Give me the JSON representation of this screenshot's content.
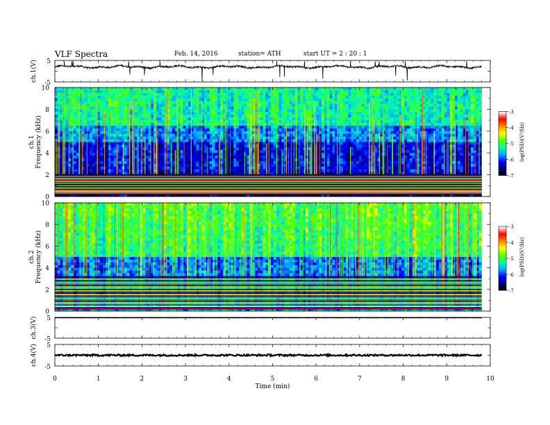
{
  "header": {
    "title": "VLF  Spectra",
    "date": "Feb. 14, 2016",
    "station": "station= ATH",
    "start_ut": "start  UT  =   2  : 20 : 1"
  },
  "chart_data": [
    {
      "id": "ch1_waveform",
      "type": "line",
      "ylabel": "ch.1(V)",
      "ylim": [
        -5,
        5
      ],
      "yticks": [
        "5",
        "-5"
      ],
      "xlim": [
        0,
        10
      ],
      "baseline": 2.0,
      "note_values": "noisy waveform around ~2 V with sparse spikes toward +/-5 V"
    },
    {
      "id": "ch1_spectrogram",
      "type": "heatmap",
      "ylabel": "ch.1\nFrequency  (kHz)",
      "ylabel_lines": [
        "ch.1",
        "Frequency  (kHz)"
      ],
      "ylim": [
        0,
        10
      ],
      "yticks": [
        "0",
        "2",
        "4",
        "6",
        "8",
        "10"
      ],
      "xlim": [
        0,
        9.8
      ],
      "colorbar": {
        "label": "log(PSD)(V²/Hz)",
        "range": [
          -7,
          -3
        ],
        "ticks": [
          "-3",
          "-4",
          "-5",
          "-6",
          "-7"
        ]
      }
    },
    {
      "id": "ch2_spectrogram",
      "type": "heatmap",
      "ylabel_lines": [
        "ch.2",
        "Frequency  (kHz)"
      ],
      "ylim": [
        0,
        10
      ],
      "yticks": [
        "0",
        "2",
        "4",
        "6",
        "8",
        "10"
      ],
      "xlim": [
        0,
        9.8
      ],
      "colorbar": {
        "label": "log(PSD)(V²/Hz)",
        "range": [
          -7,
          -3
        ],
        "ticks": [
          "-3",
          "-4",
          "-5",
          "-6",
          "-7"
        ]
      }
    },
    {
      "id": "ch3_waveform",
      "type": "line",
      "ylabel": "ch.3(V)",
      "ylim": [
        -5,
        5
      ],
      "yticks": [
        "5",
        "-5"
      ],
      "baseline": 5.0
    },
    {
      "id": "ch4_waveform",
      "type": "line",
      "ylabel": "ch.4(V)",
      "ylim": [
        -5,
        5
      ],
      "yticks": [
        "5",
        "-5"
      ],
      "baseline": 0.0
    }
  ],
  "xaxis": {
    "label": "Time  (min)",
    "range": [
      0,
      10
    ],
    "ticks": [
      "0",
      "1",
      "2",
      "3",
      "4",
      "5",
      "6",
      "7",
      "8",
      "9",
      "10"
    ]
  },
  "colors": {
    "cmap": [
      "#000000",
      "#00007a",
      "#0000ff",
      "#00aaff",
      "#00ffaa",
      "#55ff00",
      "#ffff00",
      "#ff8800",
      "#ff0000",
      "#ffffff"
    ]
  }
}
